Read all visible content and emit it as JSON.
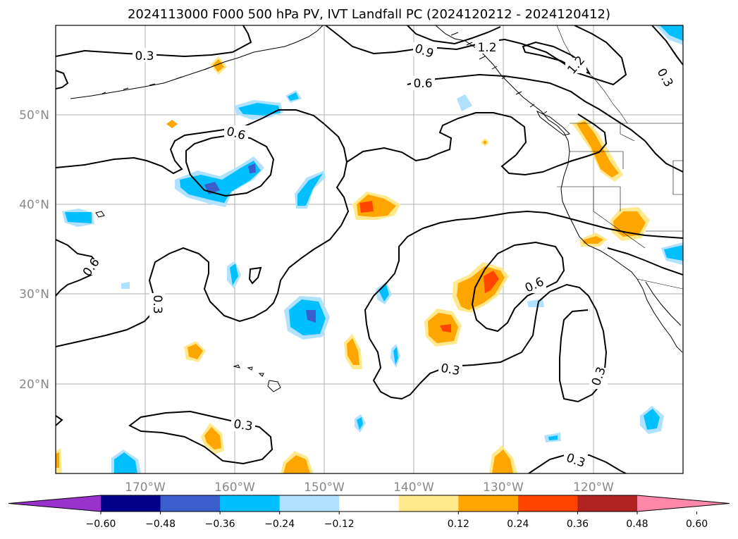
{
  "title": "2024113000 F000 500 hPa PV, IVT Landfall PC (2024120212 - 2024120412)",
  "chart_data": {
    "type": "map",
    "lon_ticks": [
      "170°W",
      "160°W",
      "150°W",
      "140°W",
      "130°W",
      "120°W"
    ],
    "lat_ticks": [
      "50°N",
      "40°N",
      "30°N",
      "20°N"
    ],
    "grid": true,
    "contour_levels": [
      "0.3",
      "0.6",
      "0.9",
      "1.2"
    ],
    "contour_labels": [
      {
        "text": "0.3"
      },
      {
        "text": "0.9"
      },
      {
        "text": "1.2"
      },
      {
        "text": "0.6"
      },
      {
        "text": "1.2"
      },
      {
        "text": "0.3"
      },
      {
        "text": "0.6"
      },
      {
        "text": "0.6"
      },
      {
        "text": "0.3"
      },
      {
        "text": "0.6"
      },
      {
        "text": "0.3"
      },
      {
        "text": "0.3"
      },
      {
        "text": "0.3"
      },
      {
        "text": "0.3"
      }
    ],
    "colorbar": {
      "tick_labels": [
        "−0.60",
        "−0.48",
        "−0.36",
        "−0.24",
        "−0.12",
        "0.12",
        "0.24",
        "0.36",
        "0.48",
        "0.60"
      ],
      "colors": [
        "#9932cc",
        "#00008b",
        "#3a5fcd",
        "#00bfff",
        "#b0e2ff",
        "#ffffff",
        "#ffe98c",
        "#ffa500",
        "#ff4500",
        "#b22222",
        "#ff88aa"
      ],
      "extend": "both"
    }
  }
}
